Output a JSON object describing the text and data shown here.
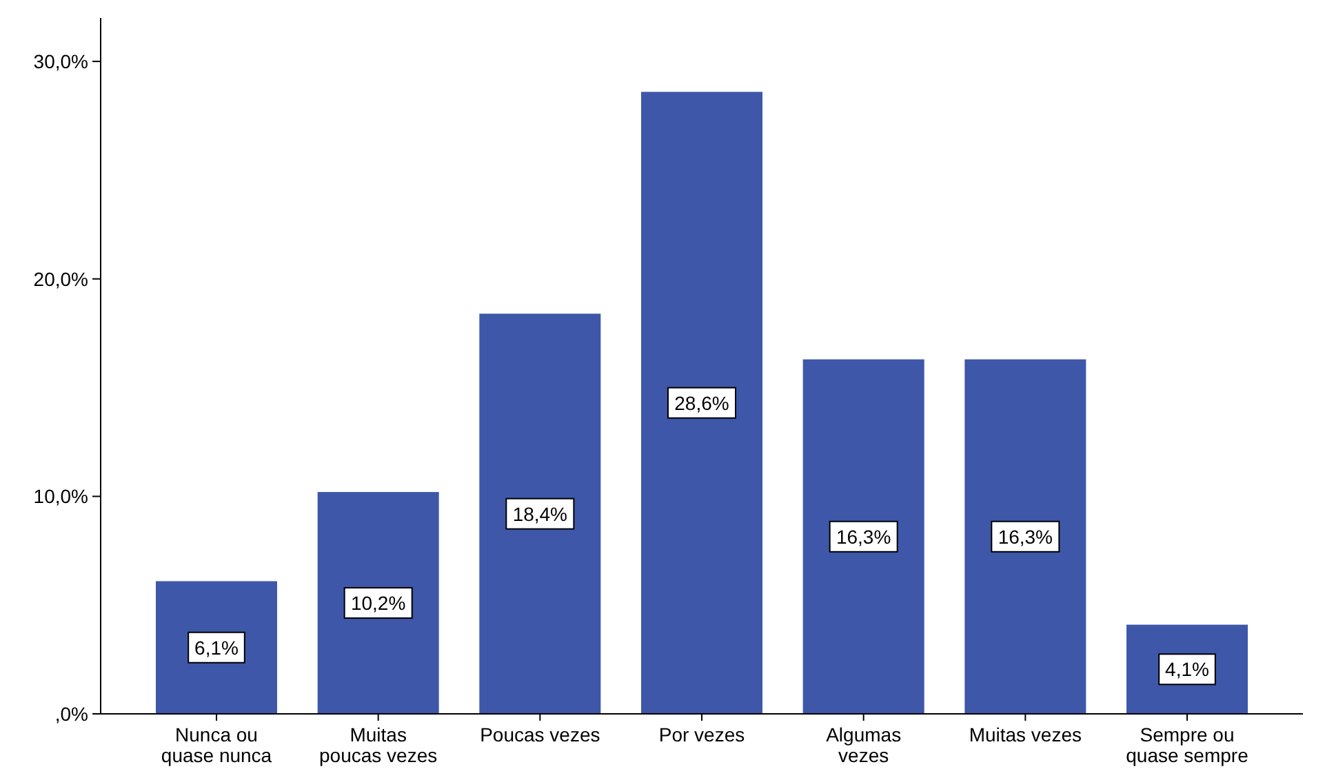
{
  "chart_data": {
    "type": "bar",
    "categories": [
      "Nunca ou quase nunca",
      "Muitas poucas vezes",
      "Poucas vezes",
      "Por vezes",
      "Algumas vezes",
      "Muitas vezes",
      "Sempre ou quase sempre"
    ],
    "values": [
      6.1,
      10.2,
      18.4,
      28.6,
      16.3,
      16.3,
      4.1
    ],
    "value_labels": [
      "6,1%",
      "10,2%",
      "18,4%",
      "28,6%",
      "16,3%",
      "16,3%",
      "4,1%"
    ],
    "color": "#3e57a9",
    "ylim": [
      0,
      32
    ],
    "yticks": [
      {
        "value": 0,
        "label": ",0%"
      },
      {
        "value": 10,
        "label": "10,0%"
      },
      {
        "value": 20,
        "label": "20,0%"
      },
      {
        "value": 30,
        "label": "30,0%"
      }
    ],
    "grid": false
  }
}
